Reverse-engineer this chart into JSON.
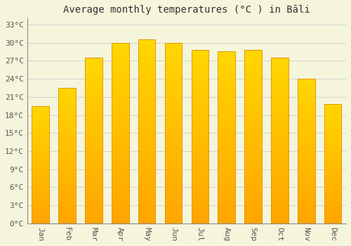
{
  "title": "Average monthly temperatures (°C ) in Bāli",
  "months": [
    "Jan",
    "Feb",
    "Mar",
    "Apr",
    "May",
    "Jun",
    "Jul",
    "Aug",
    "Sep",
    "Oct",
    "Nov",
    "Dec"
  ],
  "values": [
    19.5,
    22.5,
    27.5,
    30.0,
    30.5,
    30.0,
    28.8,
    28.5,
    28.8,
    27.5,
    24.0,
    19.8
  ],
  "bar_color_bottom": "#FFA500",
  "bar_color_top": "#FFD700",
  "bar_edge_color": "#E69500",
  "background_color": "#F5F5DC",
  "grid_color": "#CCCCCC",
  "text_color": "#555555",
  "ylim": [
    0,
    34
  ],
  "ytick_step": 3,
  "title_fontsize": 10,
  "tick_fontsize": 8,
  "bar_width": 0.65
}
